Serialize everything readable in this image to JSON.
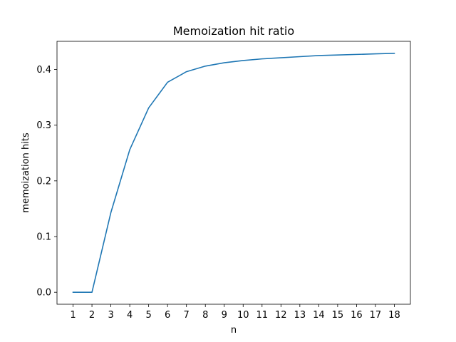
{
  "chart_data": {
    "type": "line",
    "title": "Memoization hit ratio",
    "xlabel": "n",
    "ylabel": "memoization hits",
    "x": [
      1,
      2,
      3,
      4,
      5,
      6,
      7,
      8,
      9,
      10,
      11,
      12,
      13,
      14,
      15,
      16,
      17,
      18
    ],
    "series": [
      {
        "values": [
          0.0,
          0.0,
          0.143,
          0.256,
          0.331,
          0.377,
          0.396,
          0.406,
          0.412,
          0.416,
          0.419,
          0.421,
          0.423,
          0.425,
          0.426,
          0.427,
          0.428,
          0.429
        ],
        "color": "#1f77b4"
      }
    ],
    "xticks": [
      "1",
      "2",
      "3",
      "4",
      "5",
      "6",
      "7",
      "8",
      "9",
      "10",
      "11",
      "12",
      "13",
      "14",
      "15",
      "16",
      "17",
      "18"
    ],
    "yticks": [
      0.0,
      0.1,
      0.2,
      0.3,
      0.4
    ],
    "ytick_labels": [
      "0.0",
      "0.1",
      "0.2",
      "0.3",
      "0.4"
    ],
    "xlim": [
      0.15,
      18.85
    ],
    "ylim": [
      -0.0215,
      0.4505
    ],
    "grid": false,
    "legend": "none"
  }
}
